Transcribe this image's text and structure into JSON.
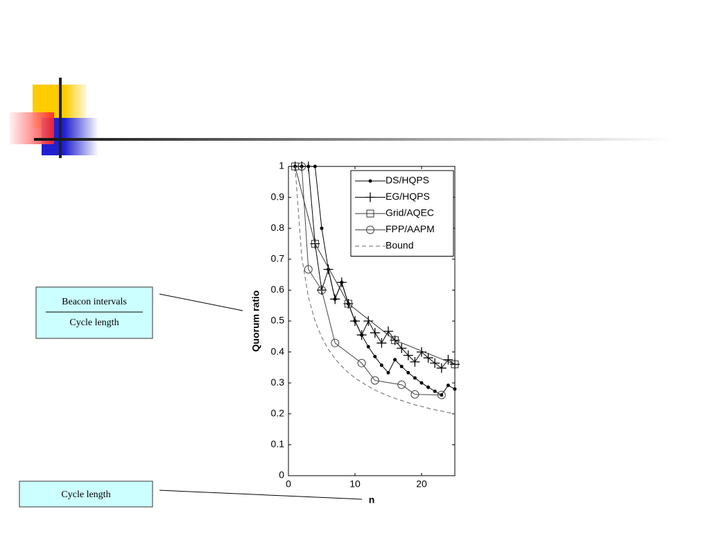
{
  "chart_data": {
    "type": "line",
    "xlabel": "n",
    "ylabel": "Quorum ratio",
    "xlim": [
      0,
      25
    ],
    "xticks": [
      0,
      10,
      20
    ],
    "ylim": [
      0,
      1
    ],
    "yticks": [
      0,
      0.1,
      0.2,
      0.3,
      0.4,
      0.5,
      0.6,
      0.7,
      0.8,
      0.9,
      1
    ],
    "grid": false,
    "legend": "upper right",
    "series": [
      {
        "name": "DS/HQPS",
        "color": "#000000",
        "marker": "dot",
        "dash": "solid",
        "x": [
          1,
          2,
          3,
          4,
          5,
          6,
          7,
          8,
          9,
          10,
          11,
          12,
          13,
          14,
          15,
          16,
          17,
          18,
          19,
          20,
          21,
          22,
          23,
          24,
          25
        ],
        "values": [
          1,
          1,
          1,
          1,
          0.8,
          0.667,
          0.571,
          0.625,
          0.556,
          0.5,
          0.455,
          0.417,
          0.385,
          0.357,
          0.333,
          0.375,
          0.353,
          0.333,
          0.316,
          0.3,
          0.286,
          0.273,
          0.261,
          0.292,
          0.28
        ]
      },
      {
        "name": "EG/HQPS",
        "color": "#000000",
        "marker": "plus",
        "dash": "solid",
        "x": [
          1,
          2,
          3,
          4,
          5,
          6,
          7,
          8,
          9,
          10,
          11,
          12,
          13,
          14,
          15,
          16,
          17,
          18,
          19,
          20,
          21,
          22,
          23,
          24,
          25
        ],
        "values": [
          1,
          1,
          1,
          0.75,
          0.6,
          0.667,
          0.571,
          0.625,
          0.556,
          0.5,
          0.455,
          0.5,
          0.462,
          0.429,
          0.467,
          0.438,
          0.412,
          0.389,
          0.368,
          0.4,
          0.381,
          0.364,
          0.348,
          0.375,
          0.36
        ]
      },
      {
        "name": "Grid/AQEC",
        "color": "#333333",
        "marker": "square",
        "dash": "solid",
        "x": [
          1,
          4,
          9,
          16,
          25
        ],
        "values": [
          1,
          0.75,
          0.556,
          0.438,
          0.36
        ]
      },
      {
        "name": "FPP/AAPM",
        "color": "#444444",
        "marker": "circle",
        "dash": "solid",
        "x": [
          2,
          3,
          5,
          7,
          11,
          13,
          17,
          19,
          23
        ],
        "values": [
          1,
          0.667,
          0.6,
          0.429,
          0.364,
          0.308,
          0.294,
          0.263,
          0.261
        ]
      },
      {
        "name": "Bound",
        "color": "#666666",
        "marker": "none",
        "dash": "dashed",
        "x": [
          1,
          2,
          3,
          4,
          5,
          6,
          7,
          8,
          9,
          10,
          11,
          12,
          13,
          14,
          15,
          16,
          17,
          18,
          19,
          20,
          21,
          22,
          23,
          24,
          25
        ],
        "values": [
          1,
          0.707,
          0.577,
          0.5,
          0.447,
          0.408,
          0.378,
          0.354,
          0.333,
          0.316,
          0.302,
          0.289,
          0.277,
          0.267,
          0.258,
          0.25,
          0.243,
          0.236,
          0.229,
          0.224,
          0.218,
          0.213,
          0.209,
          0.204,
          0.2
        ]
      }
    ],
    "annotations": [
      {
        "numerator": "Beacon intervals",
        "denominator": "Cycle length"
      },
      {
        "text": "Cycle length"
      }
    ]
  }
}
